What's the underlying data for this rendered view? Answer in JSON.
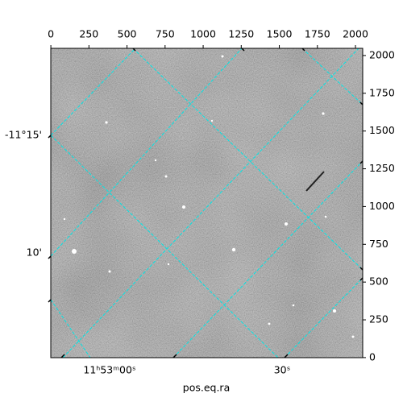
{
  "chart_data": {
    "type": "image",
    "xlabel": "pos.eq.ra",
    "xlim": [
      -0.5,
      2047.5
    ],
    "ylim": [
      -0.5,
      2047.5
    ],
    "xticks": [
      0,
      250,
      500,
      750,
      1000,
      1250,
      1500,
      1750,
      2000
    ],
    "yticks": [
      0,
      250,
      500,
      750,
      1000,
      1250,
      1500,
      1750,
      2000
    ],
    "ra_tick_labels": [
      "11ʰ53ᵐ00ˢ",
      "30ˢ"
    ],
    "dec_tick_labels": [
      "-11°15'",
      "10'"
    ],
    "grid": true,
    "grid_color": "#00e5e5"
  }
}
